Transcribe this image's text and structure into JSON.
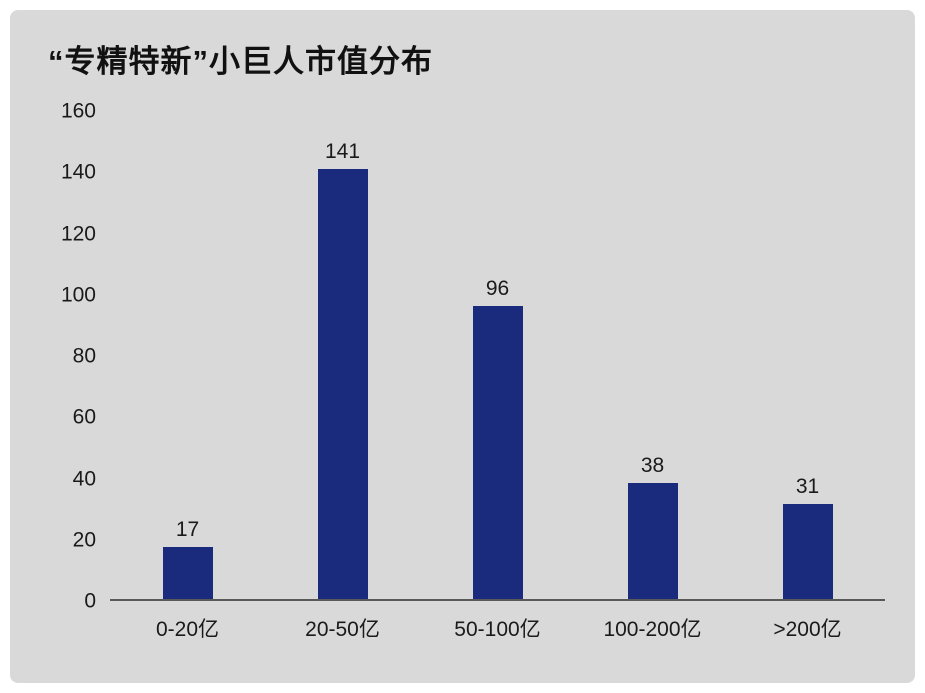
{
  "chart_data": {
    "type": "bar",
    "title": "“专精特新”小巨人市值分布",
    "categories": [
      "0-20亿",
      "20-50亿",
      "50-100亿",
      "100-200亿",
      ">200亿"
    ],
    "values": [
      17,
      141,
      96,
      38,
      31
    ],
    "xlabel": "",
    "ylabel": "",
    "ylim": [
      0,
      160
    ],
    "yticks": [
      0,
      20,
      40,
      60,
      80,
      100,
      120,
      140,
      160
    ],
    "grid": false,
    "legend": false,
    "bar_color": "#1a2b7d",
    "background_color": "#d9d9d9",
    "axis_line_color": "#595959"
  }
}
